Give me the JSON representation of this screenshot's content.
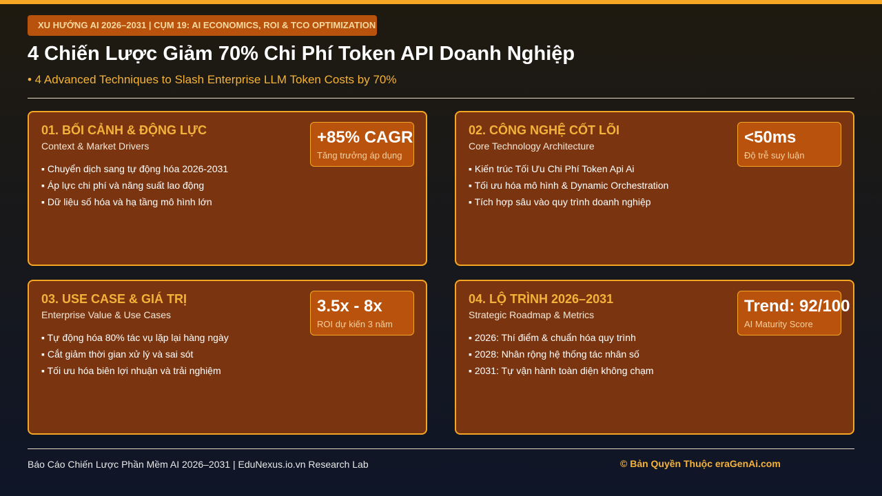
{
  "header": {
    "badge": "XU HƯỚNG AI 2026–2031 | CỤM 19: AI ECONOMICS, ROI & TCO OPTIMIZATION",
    "title": "4 Chiến Lược Giảm 70% Chi Phí Token API Doanh Nghiệp",
    "subtitle": "• 4 Advanced Techniques to Slash Enterprise LLM Token Costs by 70%"
  },
  "cards": [
    {
      "title": "01. BỐI CẢNH & ĐỘNG LỰC",
      "subtitle": "Context & Market Drivers",
      "metric": "+85% CAGR",
      "metric_label": "Tăng trưởng áp dụng",
      "bullets": [
        "▪ Chuyển dịch sang tự động hóa 2026-2031",
        "▪ Áp lực chi phí và năng suất lao động",
        "▪ Dữ liệu số hóa và hạ tầng mô hình lớn"
      ]
    },
    {
      "title": "02. CÔNG NGHỆ CỐT LÕI",
      "subtitle": "Core Technology Architecture",
      "metric": "<50ms",
      "metric_label": "Độ trễ suy luận",
      "bullets": [
        "▪ Kiến trúc Tối Ưu Chi Phí Token Api Ai",
        "▪ Tối ưu hóa mô hình & Dynamic Orchestration",
        "▪ Tích hợp sâu vào quy trình doanh nghiệp"
      ]
    },
    {
      "title": "03. USE CASE & GIÁ TRỊ",
      "subtitle": "Enterprise Value & Use Cases",
      "metric": "3.5x - 8x",
      "metric_label": "ROI dự kiến 3 năm",
      "bullets": [
        "▪ Tự động hóa 80% tác vụ lặp lại hàng ngày",
        "▪ Cắt giảm thời gian xử lý và sai sót",
        "▪ Tối ưu hóa biên lợi nhuận và trải nghiệm"
      ]
    },
    {
      "title": "04. LỘ TRÌNH 2026–2031",
      "subtitle": "Strategic Roadmap & Metrics",
      "metric": "Trend: 92/100",
      "metric_label": "AI Maturity Score",
      "bullets": [
        "▪ 2026: Thí điểm & chuẩn hóa quy trình",
        "▪ 2028: Nhân rộng hệ thống tác nhân số",
        "▪ 2031: Tự vận hành toàn diện không chạm"
      ]
    }
  ],
  "footer": {
    "left": "Báo Cáo Chiến Lược Phần Mềm AI 2026–2031 | EduNexus.io.vn Research Lab",
    "right": "© Bản Quyền Thuộc eraGenAi.com"
  }
}
